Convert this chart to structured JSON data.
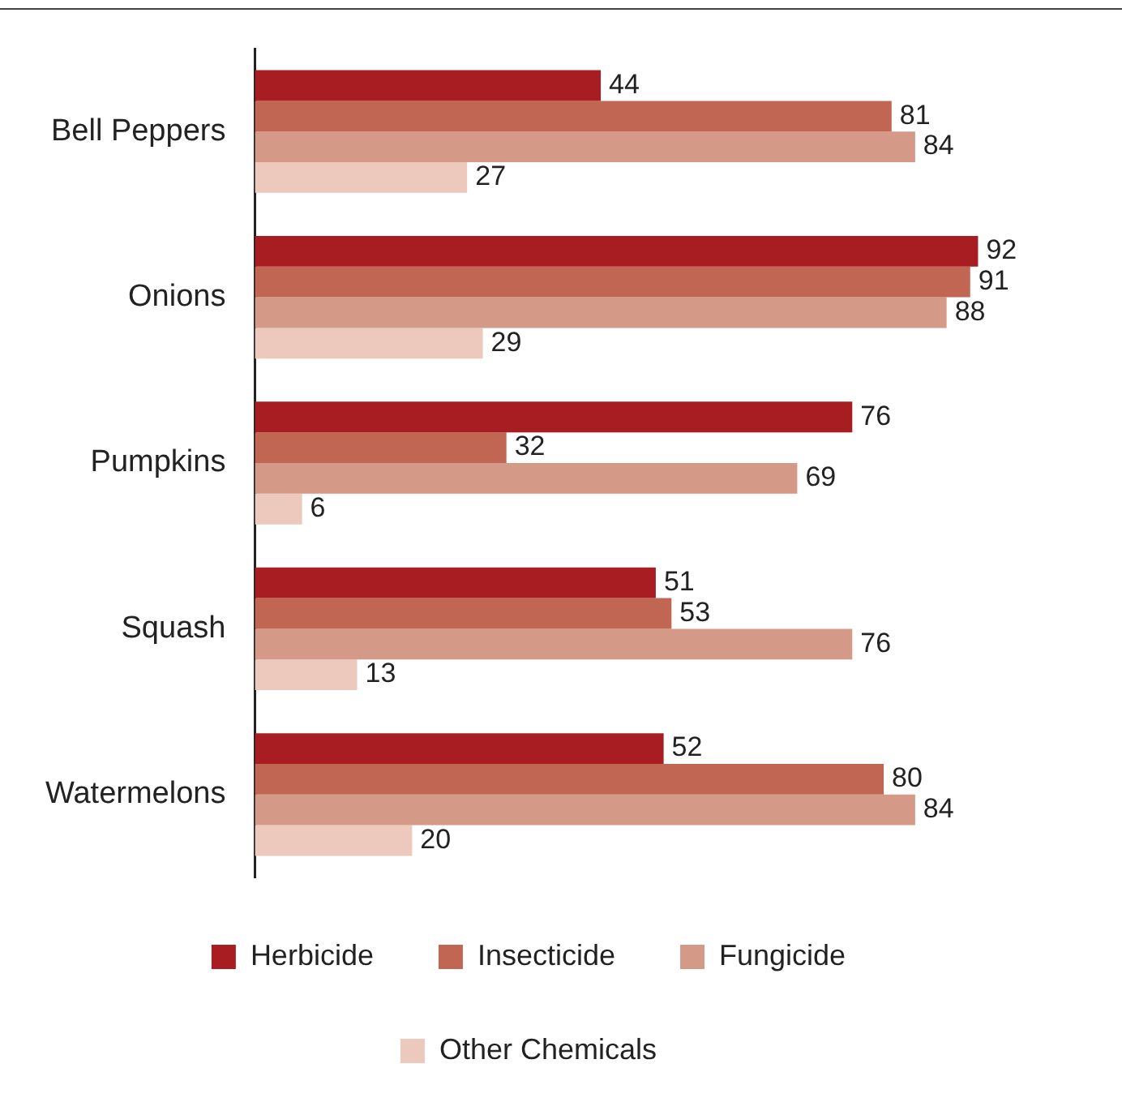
{
  "chart_data": {
    "type": "bar",
    "orientation": "horizontal",
    "categories": [
      "Bell Peppers",
      "Onions",
      "Pumpkins",
      "Squash",
      "Watermelons"
    ],
    "series": [
      {
        "name": "Herbicide",
        "color": "#a81d22",
        "values": [
          44,
          92,
          76,
          51,
          52
        ]
      },
      {
        "name": "Insecticide",
        "color": "#c06652",
        "values": [
          81,
          91,
          32,
          53,
          80
        ]
      },
      {
        "name": "Fungicide",
        "color": "#d49a87",
        "values": [
          84,
          88,
          69,
          76,
          84
        ]
      },
      {
        "name": "Other Chemicals",
        "color": "#ecc8bd",
        "values": [
          27,
          29,
          6,
          13,
          20
        ]
      }
    ],
    "data_labels": true,
    "legend": "bottom",
    "grid": false
  }
}
